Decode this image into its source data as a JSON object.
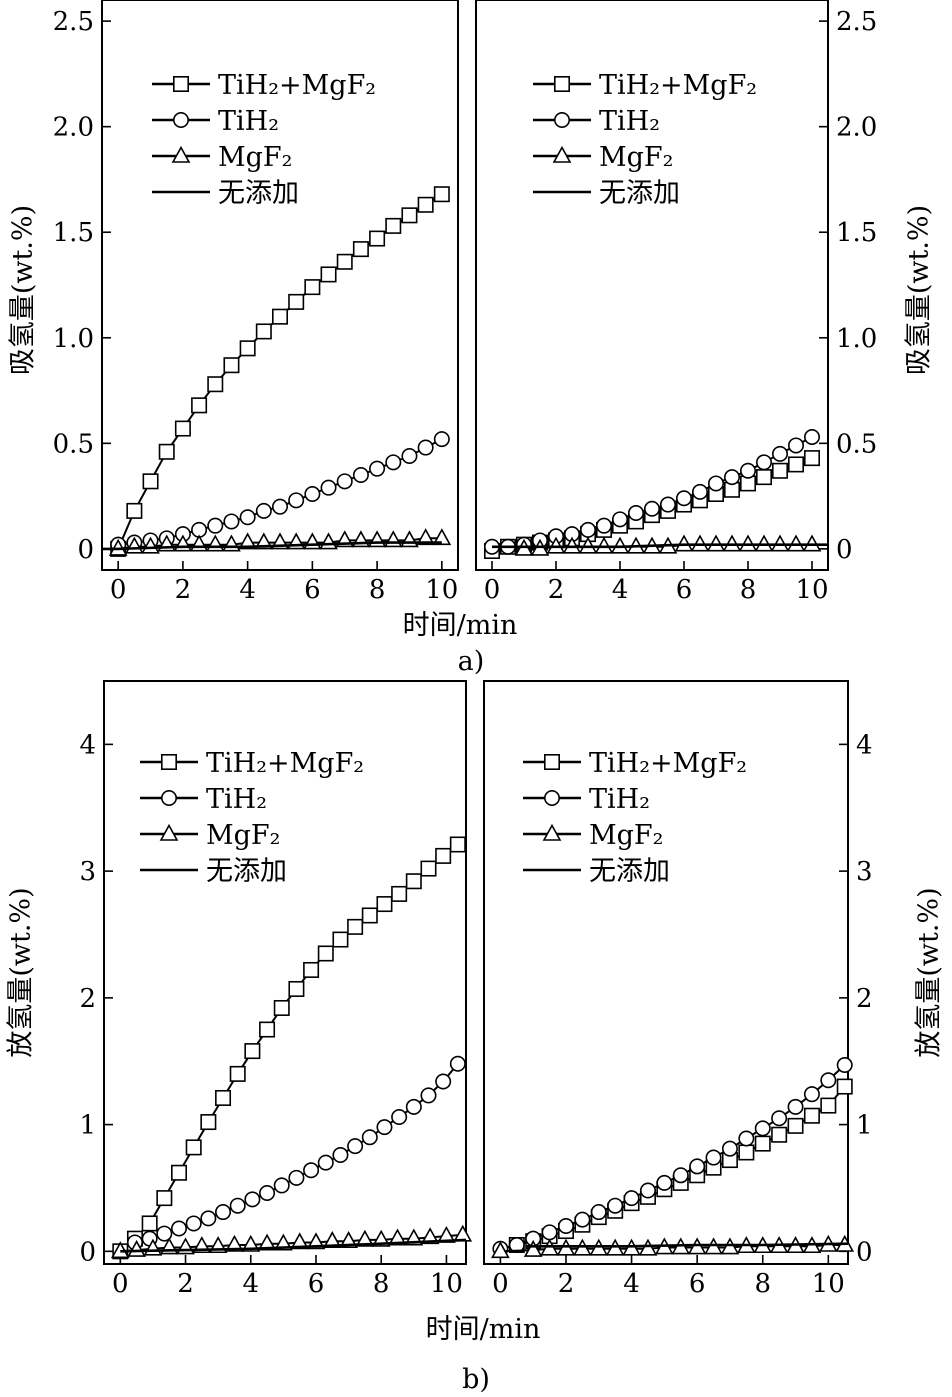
{
  "figure": {
    "caption_a": "a)",
    "caption_b": "b)",
    "xlabel": "时间/min"
  },
  "chart_data": [
    {
      "type": "line",
      "id": "a-left",
      "title": "",
      "xlabel": "时间/min",
      "ylabel": "吸氢量(wt.%)",
      "xlim": [
        -0.5,
        10.5
      ],
      "ylim": [
        -0.1,
        2.6
      ],
      "xticks": [
        0,
        2,
        4,
        6,
        8,
        10
      ],
      "yticks": [
        0,
        0.5,
        1.0,
        1.5,
        2.0,
        2.5
      ],
      "ytick_labels": [
        "0",
        "0.5",
        "1.0",
        "1.5",
        "2.0",
        "2.5"
      ],
      "grid": false,
      "legend_position": "top-left",
      "series": [
        {
          "name": "TiH₂+MgF₂",
          "marker": "square",
          "x": [
            0,
            0.5,
            1,
            1.5,
            2,
            2.5,
            3,
            3.5,
            4,
            4.5,
            5,
            5.5,
            6,
            6.5,
            7,
            7.5,
            8,
            8.5,
            9,
            9.5,
            10
          ],
          "y": [
            0,
            0.18,
            0.32,
            0.46,
            0.57,
            0.68,
            0.78,
            0.87,
            0.95,
            1.03,
            1.1,
            1.17,
            1.24,
            1.3,
            1.36,
            1.42,
            1.47,
            1.53,
            1.58,
            1.63,
            1.68
          ]
        },
        {
          "name": "TiH₂",
          "marker": "circle",
          "x": [
            0,
            0.5,
            1,
            1.5,
            2,
            2.5,
            3,
            3.5,
            4,
            4.5,
            5,
            5.5,
            6,
            6.5,
            7,
            7.5,
            8,
            8.5,
            9,
            9.5,
            10
          ],
          "y": [
            0.02,
            0.03,
            0.04,
            0.05,
            0.07,
            0.09,
            0.11,
            0.13,
            0.15,
            0.18,
            0.2,
            0.23,
            0.26,
            0.29,
            0.32,
            0.35,
            0.38,
            0.41,
            0.44,
            0.48,
            0.52
          ]
        },
        {
          "name": "MgF₂",
          "marker": "triangle",
          "x": [
            0,
            0.5,
            1,
            1.5,
            2,
            2.5,
            3,
            3.5,
            4,
            4.5,
            5,
            5.5,
            6,
            6.5,
            7,
            7.5,
            8,
            8.5,
            9,
            9.5,
            10
          ],
          "y": [
            0,
            0.01,
            0.01,
            0.02,
            0.02,
            0.02,
            0.02,
            0.02,
            0.03,
            0.03,
            0.03,
            0.03,
            0.03,
            0.03,
            0.04,
            0.04,
            0.04,
            0.04,
            0.04,
            0.05,
            0.05
          ]
        },
        {
          "name": "无添加",
          "marker": "none",
          "x": [
            -0.5,
            0,
            2,
            4,
            6,
            8,
            10
          ],
          "y": [
            0,
            0,
            0.01,
            0.01,
            0.02,
            0.03,
            0.03
          ]
        }
      ]
    },
    {
      "type": "line",
      "id": "a-right",
      "title": "",
      "xlabel": "时间/min",
      "ylabel": "吸氢量(wt.%)",
      "xlim": [
        -0.5,
        10.5
      ],
      "ylim": [
        -0.1,
        2.6
      ],
      "xticks": [
        0,
        2,
        4,
        6,
        8,
        10
      ],
      "yticks": [
        0,
        0.5,
        1.0,
        1.5,
        2.0,
        2.5
      ],
      "ytick_labels": [
        "0",
        "0.5",
        "1.0",
        "1.5",
        "2.0",
        "2.5"
      ],
      "grid": false,
      "legend_position": "top-left",
      "series": [
        {
          "name": "TiH₂+MgF₂",
          "marker": "square",
          "x": [
            0,
            0.5,
            1,
            1.5,
            2,
            2.5,
            3,
            3.5,
            4,
            4.5,
            5,
            5.5,
            6,
            6.5,
            7,
            7.5,
            8,
            8.5,
            9,
            9.5,
            10
          ],
          "y": [
            -0.01,
            0.01,
            0.02,
            0.03,
            0.04,
            0.05,
            0.07,
            0.09,
            0.11,
            0.13,
            0.16,
            0.18,
            0.21,
            0.23,
            0.26,
            0.28,
            0.31,
            0.34,
            0.37,
            0.4,
            0.43
          ]
        },
        {
          "name": "TiH₂",
          "marker": "circle",
          "x": [
            0,
            0.5,
            1,
            1.5,
            2,
            2.5,
            3,
            3.5,
            4,
            4.5,
            5,
            5.5,
            6,
            6.5,
            7,
            7.5,
            8,
            8.5,
            9,
            9.5,
            10
          ],
          "y": [
            0.01,
            0.01,
            0.02,
            0.04,
            0.06,
            0.07,
            0.09,
            0.11,
            0.14,
            0.17,
            0.19,
            0.21,
            0.24,
            0.27,
            0.31,
            0.34,
            0.37,
            0.41,
            0.45,
            0.49,
            0.53
          ]
        },
        {
          "name": "MgF₂",
          "marker": "triangle",
          "x": [
            1,
            1.5,
            2,
            2.5,
            3,
            3.5,
            4,
            4.5,
            5,
            5.5,
            6,
            6.5,
            7,
            7.5,
            8,
            8.5,
            9,
            9.5,
            10
          ],
          "y": [
            0,
            0,
            0.01,
            0.01,
            0.01,
            0.01,
            0.01,
            0.01,
            0.01,
            0.01,
            0.02,
            0.02,
            0.02,
            0.02,
            0.02,
            0.02,
            0.02,
            0.02,
            0.02
          ]
        },
        {
          "name": "无添加",
          "marker": "none",
          "x": [
            0,
            2,
            4,
            6,
            8,
            10.5
          ],
          "y": [
            0.01,
            0.01,
            0.01,
            0.02,
            0.02,
            0.02
          ]
        }
      ]
    },
    {
      "type": "line",
      "id": "b-left",
      "title": "",
      "xlabel": "时间/min",
      "ylabel": "放氢量(wt.%)",
      "xlim": [
        -0.5,
        10.6
      ],
      "ylim": [
        -0.1,
        4.5
      ],
      "xticks": [
        0,
        2,
        4,
        6,
        8,
        10
      ],
      "yticks": [
        0,
        1,
        2,
        3,
        4
      ],
      "ytick_labels": [
        "0",
        "1",
        "2",
        "3",
        "4"
      ],
      "grid": false,
      "legend_position": "top-left",
      "series": [
        {
          "name": "TiH₂+MgF₂",
          "marker": "square",
          "x": [
            0,
            0.45,
            0.9,
            1.35,
            1.8,
            2.25,
            2.7,
            3.15,
            3.6,
            4.05,
            4.5,
            4.95,
            5.4,
            5.85,
            6.3,
            6.75,
            7.2,
            7.65,
            8.1,
            8.55,
            9.0,
            9.45,
            9.9,
            10.35
          ],
          "y": [
            0,
            0.1,
            0.22,
            0.42,
            0.62,
            0.82,
            1.02,
            1.21,
            1.4,
            1.58,
            1.75,
            1.92,
            2.07,
            2.22,
            2.35,
            2.46,
            2.56,
            2.65,
            2.74,
            2.82,
            2.92,
            3.02,
            3.12,
            3.21
          ]
        },
        {
          "name": "TiH₂",
          "marker": "circle",
          "x": [
            0.45,
            0.9,
            1.35,
            1.8,
            2.25,
            2.7,
            3.15,
            3.6,
            4.05,
            4.5,
            4.95,
            5.4,
            5.85,
            6.3,
            6.75,
            7.2,
            7.65,
            8.1,
            8.55,
            9.0,
            9.45,
            9.9,
            10.35
          ],
          "y": [
            0.07,
            0.1,
            0.14,
            0.18,
            0.22,
            0.26,
            0.31,
            0.36,
            0.41,
            0.46,
            0.52,
            0.58,
            0.64,
            0.7,
            0.76,
            0.83,
            0.9,
            0.98,
            1.06,
            1.14,
            1.23,
            1.34,
            1.48
          ]
        },
        {
          "name": "MgF₂",
          "marker": "triangle",
          "x": [
            0,
            0.5,
            1,
            1.5,
            2,
            2.5,
            3,
            3.5,
            4,
            4.5,
            5,
            5.5,
            6,
            6.5,
            7,
            7.5,
            8,
            8.5,
            9,
            9.5,
            10,
            10.5
          ],
          "y": [
            0,
            0.01,
            0.02,
            0.03,
            0.03,
            0.04,
            0.04,
            0.05,
            0.05,
            0.06,
            0.06,
            0.07,
            0.07,
            0.08,
            0.08,
            0.09,
            0.09,
            0.1,
            0.1,
            0.11,
            0.12,
            0.13
          ]
        },
        {
          "name": "无添加",
          "marker": "none",
          "x": [
            0,
            2,
            4,
            6,
            8,
            10.6
          ],
          "y": [
            0,
            0.01,
            0.02,
            0.04,
            0.06,
            0.09
          ]
        }
      ]
    },
    {
      "type": "line",
      "id": "b-right",
      "title": "",
      "xlabel": "时间/min",
      "ylabel": "放氢量(wt.%)",
      "xlim": [
        -0.5,
        10.6
      ],
      "ylim": [
        -0.1,
        4.5
      ],
      "xticks": [
        0,
        2,
        4,
        6,
        8,
        10
      ],
      "yticks": [
        0,
        1,
        2,
        3,
        4
      ],
      "ytick_labels": [
        "0",
        "1",
        "2",
        "3",
        "4"
      ],
      "grid": false,
      "legend_position": "top-left",
      "series": [
        {
          "name": "TiH₂+MgF₂",
          "marker": "square",
          "x": [
            0.5,
            1,
            1.5,
            2,
            2.5,
            3,
            3.5,
            4,
            4.5,
            5,
            5.5,
            6,
            6.5,
            7,
            7.5,
            8,
            8.5,
            9,
            9.5,
            10,
            10.5
          ],
          "y": [
            0.05,
            0.08,
            0.12,
            0.16,
            0.21,
            0.27,
            0.32,
            0.38,
            0.43,
            0.49,
            0.54,
            0.6,
            0.66,
            0.72,
            0.78,
            0.85,
            0.92,
            0.99,
            1.07,
            1.15,
            1.3
          ]
        },
        {
          "name": "TiH₂",
          "marker": "circle",
          "x": [
            0,
            0.5,
            1,
            1.5,
            2,
            2.5,
            3,
            3.5,
            4,
            4.5,
            5,
            5.5,
            6,
            6.5,
            7,
            7.5,
            8,
            8.5,
            9,
            9.5,
            10,
            10.5
          ],
          "y": [
            0.02,
            0.05,
            0.1,
            0.15,
            0.2,
            0.25,
            0.31,
            0.36,
            0.42,
            0.48,
            0.54,
            0.6,
            0.67,
            0.74,
            0.81,
            0.89,
            0.97,
            1.05,
            1.14,
            1.24,
            1.35,
            1.47
          ]
        },
        {
          "name": "MgF₂",
          "marker": "triangle",
          "x": [
            0,
            1,
            1.5,
            2,
            2.5,
            3,
            3.5,
            4,
            4.5,
            5,
            5.5,
            6,
            6.5,
            7,
            7.5,
            8,
            8.5,
            9,
            9.5,
            10,
            10.5
          ],
          "y": [
            0,
            0.01,
            0.02,
            0.02,
            0.02,
            0.02,
            0.02,
            0.02,
            0.02,
            0.03,
            0.03,
            0.03,
            0.03,
            0.03,
            0.04,
            0.04,
            0.04,
            0.04,
            0.04,
            0.05,
            0.05
          ]
        },
        {
          "name": "无添加",
          "marker": "none",
          "x": [
            0.8,
            2,
            4,
            6,
            8,
            10.6
          ],
          "y": [
            0.04,
            0.04,
            0.04,
            0.05,
            0.05,
            0.06
          ]
        }
      ]
    }
  ]
}
